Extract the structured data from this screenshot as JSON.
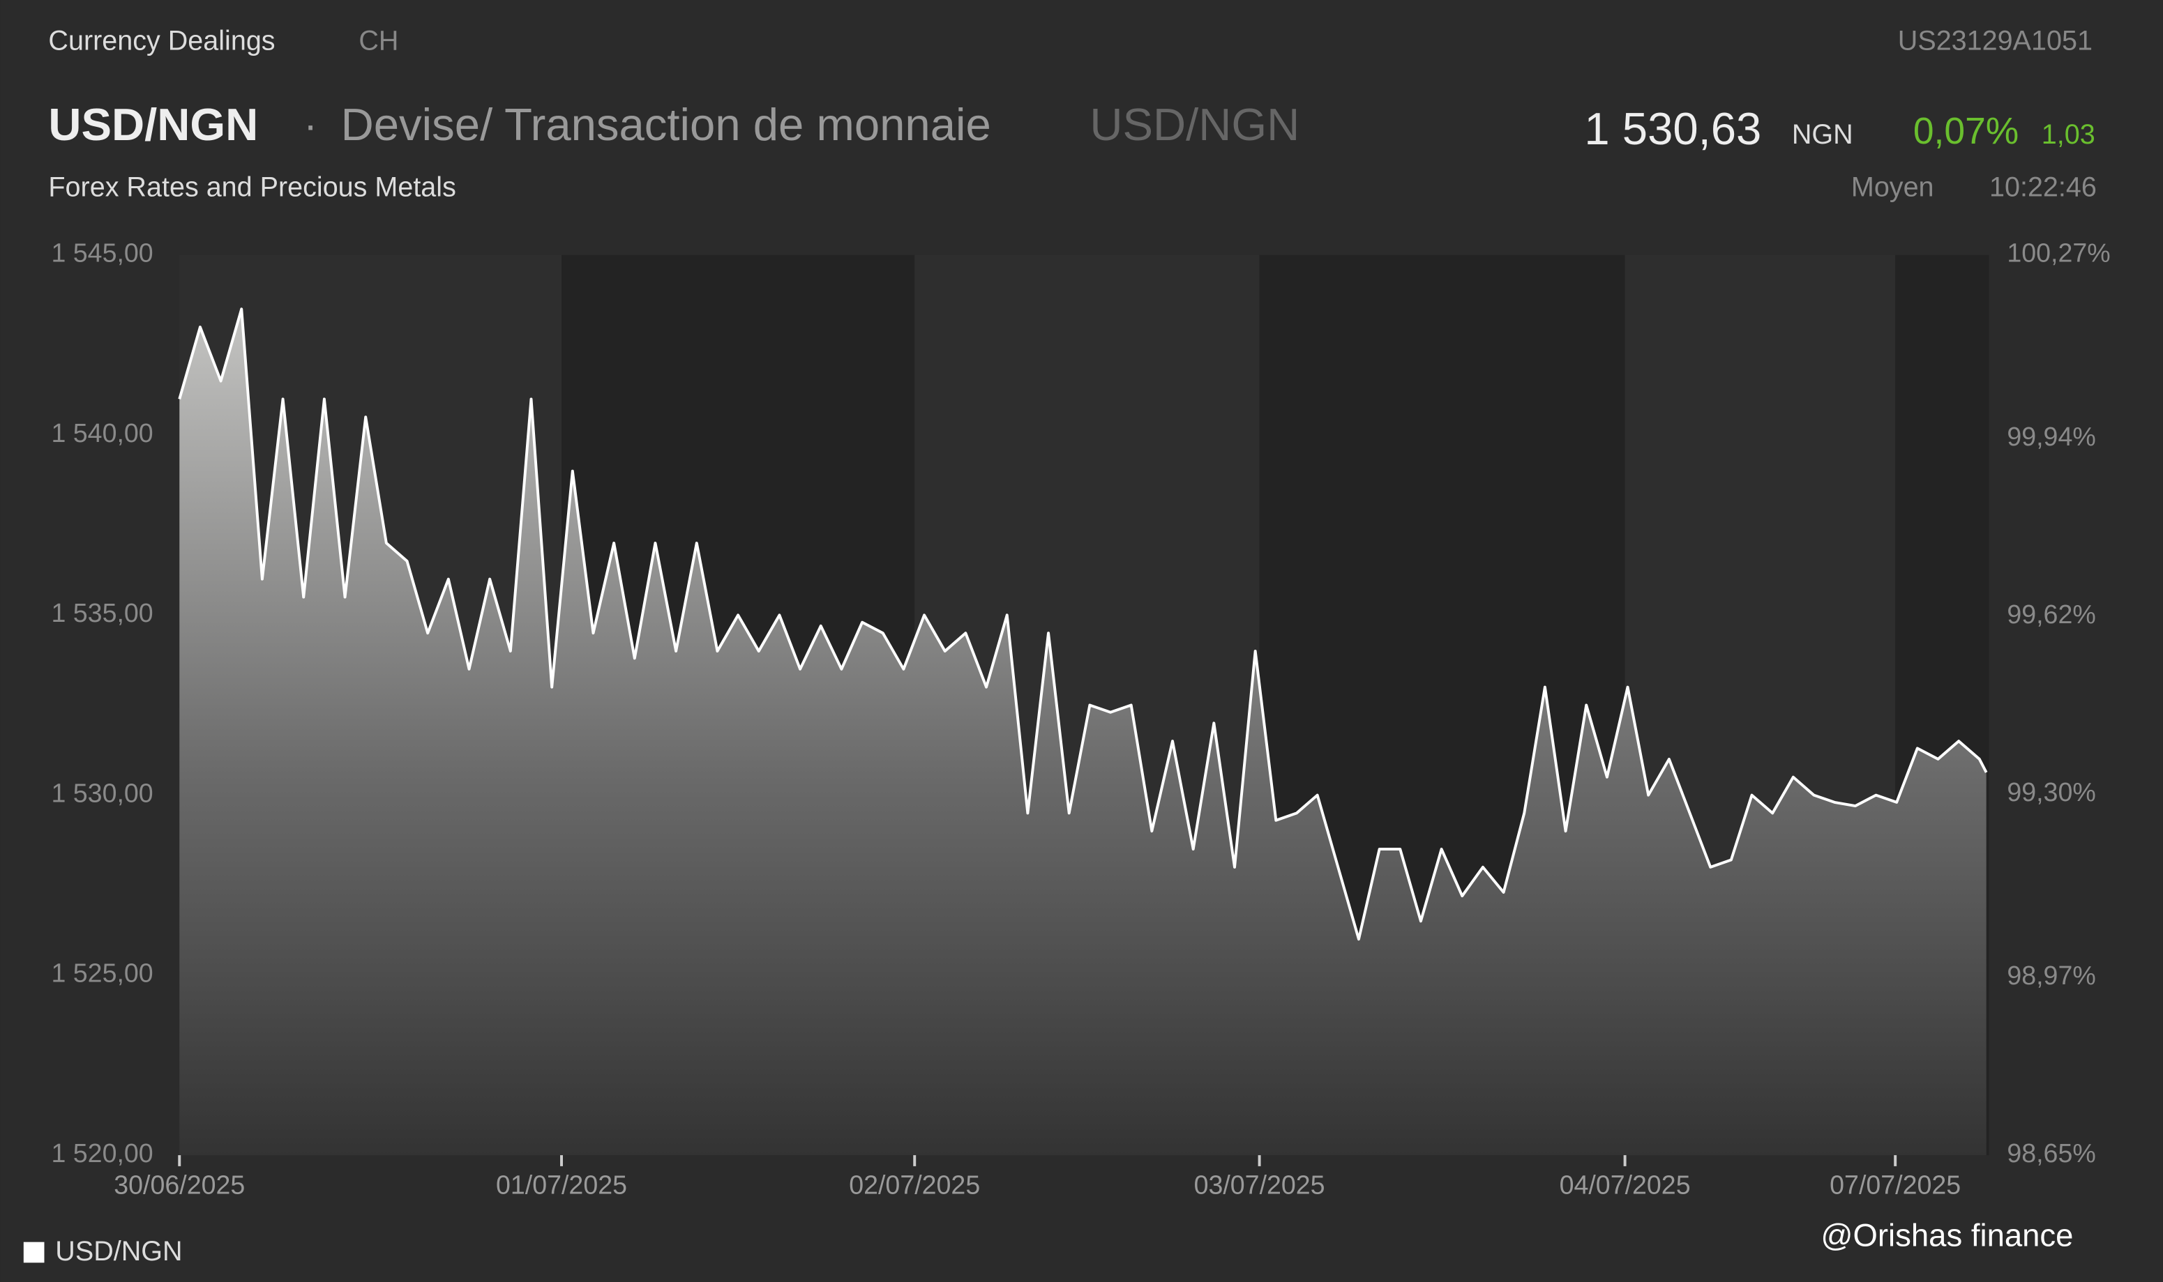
{
  "header": {
    "section": "Currency Dealings",
    "market": "CH",
    "isin": "US23129A1051",
    "symbol": "USD/NGN",
    "separator": "·",
    "asset_class": "Devise/ Transaction de monnaie",
    "symbol_alt": "USD/NGN",
    "price": "1 530,63",
    "currency": "NGN",
    "change_pct": "0,07%",
    "change_abs": "1,03",
    "subtitle": "Forex Rates and Precious Metals",
    "price_type": "Moyen",
    "time": "10:22:46",
    "watermark": "@Orishas finance"
  },
  "chart_data": {
    "type": "area",
    "x": [
      0,
      3,
      6,
      9,
      12,
      15,
      18,
      21,
      24,
      27,
      30,
      33,
      36,
      39,
      42,
      45,
      48,
      51,
      54,
      57,
      60,
      63,
      66,
      69,
      72,
      75,
      78,
      81,
      84,
      87,
      90,
      93,
      96,
      99,
      102,
      105,
      108,
      111,
      114,
      117,
      120,
      123,
      126,
      129,
      132,
      135,
      138,
      141,
      144,
      147,
      150,
      153,
      156,
      159,
      162,
      165,
      168,
      171,
      174,
      177,
      180,
      183,
      186,
      189,
      192,
      195,
      198,
      201,
      204,
      207,
      210,
      213,
      216,
      219,
      222,
      225,
      228,
      231,
      234,
      237,
      240,
      243,
      246,
      249,
      252,
      255,
      258,
      261,
      262
    ],
    "series": [
      {
        "name": "USD/NGN",
        "color": "#ffffff",
        "values": [
          1541,
          1543,
          1541.5,
          1543.5,
          1536,
          1541,
          1535.5,
          1541,
          1535.5,
          1540.5,
          1537,
          1536.5,
          1534.5,
          1536,
          1533.5,
          1536,
          1534,
          1541,
          1533,
          1539,
          1534.5,
          1537,
          1533.8,
          1537,
          1534,
          1537,
          1534,
          1535,
          1534,
          1535,
          1533.5,
          1534.7,
          1533.5,
          1534.8,
          1534.5,
          1533.5,
          1535,
          1534,
          1534.5,
          1533,
          1535,
          1529.5,
          1534.5,
          1529.5,
          1532.5,
          1532.3,
          1532.5,
          1529,
          1531.5,
          1528.5,
          1532,
          1528,
          1534,
          1529.3,
          1529.5,
          1530,
          1528,
          1526,
          1528.5,
          1528.5,
          1526.5,
          1528.5,
          1527.2,
          1528,
          1527.3,
          1529.5,
          1533,
          1529,
          1532.5,
          1530.5,
          1533,
          1530,
          1531,
          1529.5,
          1528,
          1528.2,
          1530,
          1529.5,
          1530.5,
          1530,
          1529.8,
          1529.7,
          1530,
          1529.8,
          1531.3,
          1531,
          1531.5,
          1531,
          1530.63
        ]
      }
    ],
    "xlim": [
      0,
      262.4
    ],
    "xticks": [
      {
        "value": 0,
        "label": "30/06/2025"
      },
      {
        "value": 55.4,
        "label": "01/07/2025"
      },
      {
        "value": 106.6,
        "label": "02/07/2025"
      },
      {
        "value": 156.6,
        "label": "03/07/2025"
      },
      {
        "value": 209.6,
        "label": "04/07/2025"
      },
      {
        "value": 248.8,
        "label": "07/07/2025"
      }
    ],
    "ylim": [
      1520,
      1545
    ],
    "yticks": [
      {
        "value": 1520,
        "label": "1 520,00"
      },
      {
        "value": 1525,
        "label": "1 525,00"
      },
      {
        "value": 1530,
        "label": "1 530,00"
      },
      {
        "value": 1535,
        "label": "1 535,00"
      },
      {
        "value": 1540,
        "label": "1 540,00"
      },
      {
        "value": 1545,
        "label": "1 545,00"
      }
    ],
    "y2lim": [
      98.65,
      100.27
    ],
    "y2ticks": [
      {
        "value": 98.65,
        "label": "98,65%"
      },
      {
        "value": 98.97,
        "label": "98,97%"
      },
      {
        "value": 99.3,
        "label": "99,30%"
      },
      {
        "value": 99.62,
        "label": "99,62%"
      },
      {
        "value": 99.94,
        "label": "99,94%"
      },
      {
        "value": 100.27,
        "label": "100,27%"
      }
    ],
    "legend": "bottom-left"
  }
}
